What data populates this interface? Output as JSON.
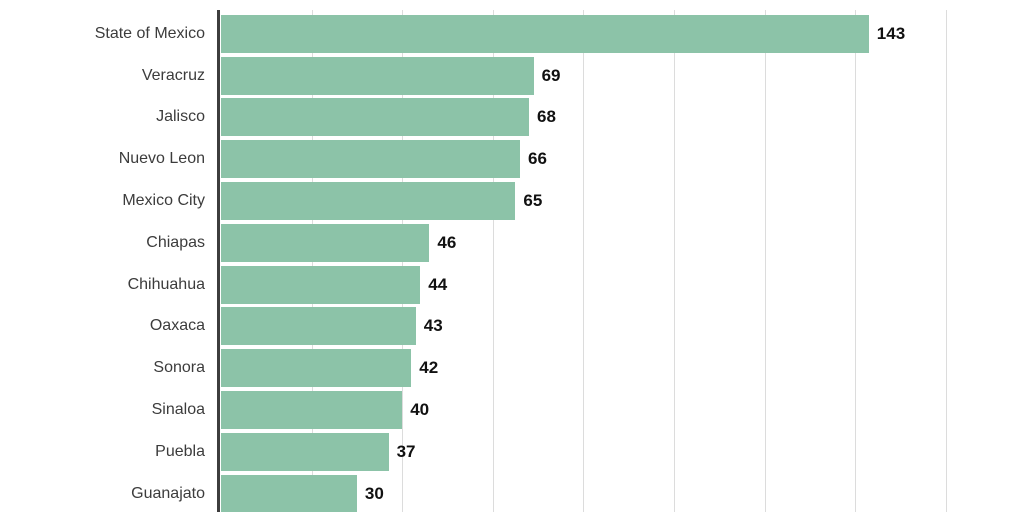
{
  "chart_data": {
    "type": "bar",
    "orientation": "horizontal",
    "title": "",
    "xlabel": "",
    "ylabel": "",
    "categories": [
      "State of Mexico",
      "Veracruz",
      "Jalisco",
      "Nuevo Leon",
      "Mexico City",
      "Chiapas",
      "Chihuahua",
      "Oaxaca",
      "Sonora",
      "Sinaloa",
      "Puebla",
      "Guanajato"
    ],
    "values": [
      143,
      69,
      68,
      66,
      65,
      46,
      44,
      43,
      42,
      40,
      37,
      30
    ],
    "xlim": [
      0,
      160
    ],
    "grid_step": 20,
    "grid": true,
    "legend_position": "none",
    "bars_labeled_at_end": true,
    "bottom_bar_clipped": true,
    "colors": {
      "bar": "#8cc3a8",
      "axis": "#3d3d3d",
      "gridline": "#dcdcdc",
      "category_label": "#3c3c3c",
      "value_label": "#111111",
      "background": "#ffffff"
    }
  }
}
